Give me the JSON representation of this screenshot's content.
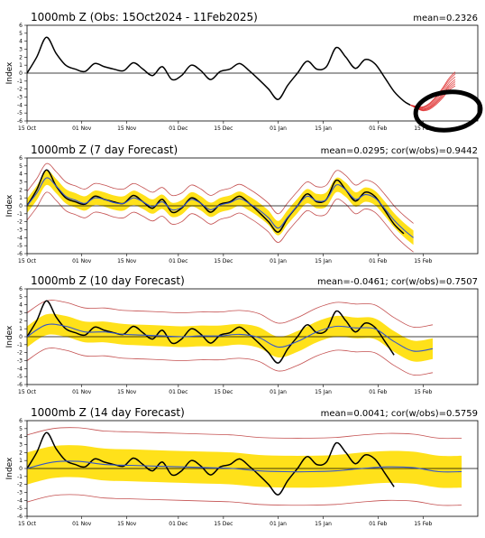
{
  "x_tick_labels": [
    "15 Oct",
    "01 Nov",
    "15 Nov",
    "01 Dec",
    "15 Dec",
    "01 Jan",
    "15 Jan",
    "01 Feb",
    "15 Feb"
  ],
  "y_tick_labels": [
    "6",
    "5",
    "4",
    "3",
    "2",
    "1",
    "0",
    "-1",
    "-2",
    "-3",
    "-4",
    "-5",
    "-6"
  ],
  "y_axis_label": "Index",
  "chart_data": [
    {
      "type": "line",
      "title": "1000mb Z (Obs: 15Oct2024 - 11Feb2025)",
      "stat": "mean=0.2326",
      "xlabel": "",
      "ylabel": "Index",
      "ylim": [
        -6,
        6
      ],
      "grid": false,
      "x_ticks": [
        "15 Oct",
        "01 Nov",
        "15 Nov",
        "01 Dec",
        "15 Dec",
        "01 Jan",
        "15 Jan",
        "01 Feb",
        "15 Feb"
      ],
      "series": [
        {
          "name": "",
          "color": "#000000",
          "x": [
            0,
            3,
            6,
            9,
            12,
            15,
            18,
            21,
            24,
            27,
            30,
            33,
            36,
            39,
            42,
            45,
            48,
            51,
            54,
            57,
            60,
            63,
            66,
            69,
            72,
            75,
            78,
            81,
            84,
            87,
            90,
            93,
            96,
            99,
            102,
            105,
            108,
            111,
            114,
            117,
            119
          ],
          "y": [
            0,
            2,
            4.5,
            2.5,
            1,
            0.5,
            0.2,
            1.2,
            0.8,
            0.5,
            0.3,
            1.3,
            0.5,
            -0.3,
            0.8,
            -0.8,
            -0.3,
            1,
            0.3,
            -0.8,
            0.2,
            0.5,
            1.2,
            0.3,
            -0.8,
            -2,
            -3.3,
            -1.5,
            0,
            1.5,
            0.5,
            0.8,
            3.2,
            2,
            0.6,
            1.7,
            1.2,
            -0.5,
            -2.3,
            -3.5,
            -4
          ]
        },
        {
          "name": "",
          "color": "#dd2222",
          "x": [
            119,
            121,
            123,
            125,
            127,
            129,
            131,
            133
          ],
          "y": [
            -4,
            -4.3,
            -4.5,
            -4.2,
            -3.5,
            -2.6,
            -1.5,
            -0.8
          ]
        }
      ]
    },
    {
      "type": "line",
      "title": "1000mb Z (7 day Forecast)",
      "stat": "mean=0.0295; cor(w/obs)=0.9442",
      "xlabel": "",
      "ylabel": "Index",
      "ylim": [
        -6,
        6
      ],
      "grid": false,
      "x_ticks": [
        "15 Oct",
        "01 Nov",
        "15 Nov",
        "01 Dec",
        "15 Dec",
        "01 Jan",
        "15 Jan",
        "01 Feb",
        "15 Feb"
      ],
      "band_halfwidth": 0.9,
      "outer_halfwidth": 1.8,
      "series": [
        {
          "name": "",
          "color": "#000000",
          "x": [
            0,
            3,
            6,
            9,
            12,
            15,
            18,
            21,
            24,
            27,
            30,
            33,
            36,
            39,
            42,
            45,
            48,
            51,
            54,
            57,
            60,
            63,
            66,
            69,
            72,
            75,
            78,
            81,
            84,
            87,
            90,
            93,
            96,
            99,
            102,
            105,
            108,
            111,
            114,
            117
          ],
          "y": [
            0,
            2,
            4.5,
            2.5,
            1,
            0.5,
            0.2,
            1.2,
            0.8,
            0.5,
            0.3,
            1.3,
            0.5,
            -0.3,
            0.8,
            -0.8,
            -0.3,
            1,
            0.3,
            -0.8,
            0.2,
            0.5,
            1.2,
            0.3,
            -0.8,
            -2,
            -3.3,
            -1.5,
            0,
            1.5,
            0.5,
            0.8,
            3.2,
            2,
            0.6,
            1.7,
            1.2,
            -0.5,
            -2.3,
            -3.5
          ]
        },
        {
          "name": "",
          "color": "#3355cc",
          "x": [
            0,
            3,
            6,
            9,
            12,
            15,
            18,
            21,
            24,
            27,
            30,
            33,
            36,
            39,
            42,
            45,
            48,
            51,
            54,
            57,
            60,
            63,
            66,
            69,
            72,
            75,
            78,
            81,
            84,
            87,
            90,
            93,
            96,
            99,
            102,
            105,
            108,
            111,
            114,
            117,
            120
          ],
          "y": [
            0,
            1.6,
            3.5,
            2.5,
            1.2,
            0.7,
            0.3,
            1,
            0.8,
            0.4,
            0.3,
            1,
            0.5,
            -0.1,
            0.5,
            -0.5,
            -0.2,
            0.8,
            0.3,
            -0.5,
            0.1,
            0.4,
            0.9,
            0.3,
            -0.5,
            -1.5,
            -2.8,
            -1.4,
            0,
            1.2,
            0.6,
            0.8,
            2.6,
            2,
            0.8,
            1.4,
            1,
            -0.3,
            -1.8,
            -3,
            -4
          ]
        }
      ]
    },
    {
      "type": "line",
      "title": "1000mb Z (10 day Forecast)",
      "stat": "mean=-0.0461; cor(w/obs)=0.7507",
      "xlabel": "",
      "ylabel": "Index",
      "ylim": [
        -6,
        6
      ],
      "grid": false,
      "x_ticks": [
        "15 Oct",
        "01 Nov",
        "15 Nov",
        "01 Dec",
        "15 Dec",
        "01 Jan",
        "15 Jan",
        "01 Feb",
        "15 Feb"
      ],
      "band_halfwidth": 1.3,
      "outer_halfwidth": 3.0,
      "series": [
        {
          "name": "",
          "color": "#000000",
          "x": [
            0,
            3,
            6,
            9,
            12,
            15,
            18,
            21,
            24,
            27,
            30,
            33,
            36,
            39,
            42,
            45,
            48,
            51,
            54,
            57,
            60,
            63,
            66,
            69,
            72,
            75,
            78,
            81,
            84,
            87,
            90,
            93,
            96,
            99,
            102,
            105,
            108,
            111,
            114
          ],
          "y": [
            0,
            2,
            4.5,
            2.5,
            1,
            0.5,
            0.2,
            1.2,
            0.8,
            0.5,
            0.3,
            1.3,
            0.5,
            -0.3,
            0.8,
            -0.8,
            -0.3,
            1,
            0.3,
            -0.8,
            0.2,
            0.5,
            1.2,
            0.3,
            -0.8,
            -2,
            -3.3,
            -1.5,
            0,
            1.5,
            0.5,
            0.8,
            3.2,
            2,
            0.6,
            1.7,
            1.2,
            -0.5,
            -2.3
          ]
        },
        {
          "name": "",
          "color": "#3355cc",
          "x": [
            0,
            6,
            12,
            18,
            24,
            30,
            36,
            42,
            48,
            54,
            60,
            66,
            72,
            78,
            84,
            90,
            96,
            102,
            108,
            114,
            120,
            126
          ],
          "y": [
            0,
            1.5,
            1.3,
            0.6,
            0.6,
            0.3,
            0.2,
            0.1,
            0,
            0.1,
            0.1,
            0.3,
            -0.1,
            -1.3,
            -0.6,
            0.6,
            1.3,
            1.1,
            1,
            -0.6,
            -1.8,
            -1.5
          ]
        }
      ]
    },
    {
      "type": "line",
      "title": "1000mb Z (14 day Forecast)",
      "stat": "mean=0.0041; cor(w/obs)=0.5759",
      "xlabel": "",
      "ylabel": "Index",
      "ylim": [
        -6,
        6
      ],
      "grid": false,
      "x_ticks": [
        "15 Oct",
        "01 Nov",
        "15 Nov",
        "01 Dec",
        "15 Dec",
        "01 Jan",
        "15 Jan",
        "01 Feb",
        "15 Feb"
      ],
      "band_halfwidth": 2.0,
      "outer_halfwidth": 4.2,
      "series": [
        {
          "name": "",
          "color": "#000000",
          "x": [
            0,
            3,
            6,
            9,
            12,
            15,
            18,
            21,
            24,
            27,
            30,
            33,
            36,
            39,
            42,
            45,
            48,
            51,
            54,
            57,
            60,
            63,
            66,
            69,
            72,
            75,
            78,
            81,
            84,
            87,
            90,
            93,
            96,
            99,
            102,
            105,
            108,
            111,
            114
          ],
          "y": [
            0,
            2,
            4.5,
            2.5,
            1,
            0.5,
            0.2,
            1.2,
            0.8,
            0.5,
            0.3,
            1.3,
            0.5,
            -0.3,
            0.8,
            -0.8,
            -0.3,
            1,
            0.3,
            -0.8,
            0.2,
            0.5,
            1.2,
            0.3,
            -0.8,
            -2,
            -3.3,
            -1.5,
            0,
            1.5,
            0.5,
            0.8,
            3.2,
            2,
            0.6,
            1.7,
            1.2,
            -0.5,
            -2.3
          ]
        },
        {
          "name": "",
          "color": "#3355cc",
          "x": [
            0,
            8,
            16,
            24,
            32,
            40,
            48,
            56,
            64,
            72,
            80,
            88,
            96,
            104,
            112,
            120,
            128,
            135
          ],
          "y": [
            0,
            0.8,
            0.9,
            0.5,
            0.4,
            0.3,
            0.2,
            0.1,
            0,
            -0.3,
            -0.4,
            -0.4,
            -0.3,
            0,
            0.2,
            0.1,
            -0.4,
            -0.4
          ]
        }
      ]
    }
  ]
}
